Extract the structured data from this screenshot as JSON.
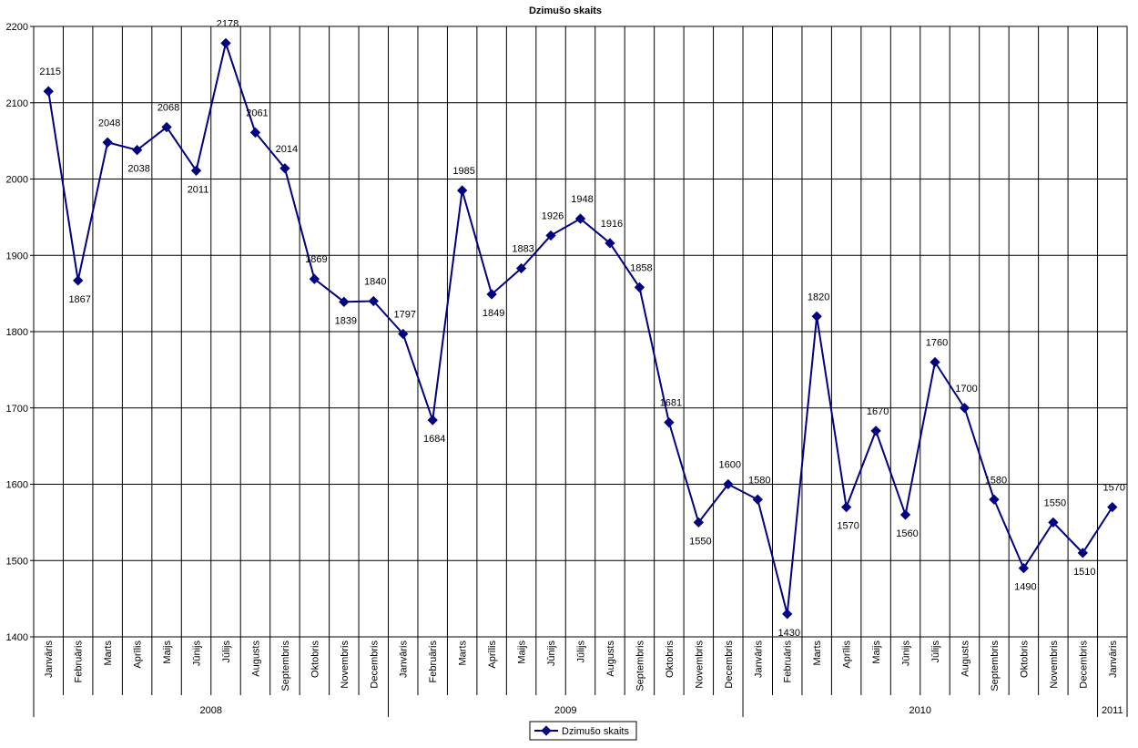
{
  "chart_data": {
    "type": "line",
    "title": "Dzimušo skaits",
    "xlabel": "",
    "ylabel": "",
    "ylim": [
      1400,
      2200
    ],
    "yticks": [
      1400,
      1500,
      1600,
      1700,
      1800,
      1900,
      2000,
      2100,
      2200
    ],
    "grid": true,
    "legend_position": "bottom-center",
    "colors": {
      "series": "#000080",
      "grid": "#000000",
      "background": "#ffffff"
    },
    "categories": [
      "Janvāris",
      "Februāris",
      "Marts",
      "Aprīlis",
      "Maijs",
      "Jūnijs",
      "Jūlijs",
      "Augusts",
      "Septembris",
      "Oktobris",
      "Novembris",
      "Decembris",
      "Janvāris",
      "Februāris",
      "Marts",
      "Aprīlis",
      "Maijs",
      "Jūnijs",
      "Jūlijs",
      "Augusts",
      "Septembris",
      "Oktobris",
      "Novembris",
      "Decembris",
      "Janvāris",
      "Februāris",
      "Marts",
      "Aprīlis",
      "Maijs",
      "Jūnijs",
      "Jūlijs",
      "Augusts",
      "Septembris",
      "Oktobris",
      "Novembris",
      "Decembris",
      "Janvāris"
    ],
    "groups": [
      {
        "label": "2008",
        "count": 12
      },
      {
        "label": "2009",
        "count": 12
      },
      {
        "label": "2010",
        "count": 12
      },
      {
        "label": "2011",
        "count": 1
      }
    ],
    "series": [
      {
        "name": "Dzimušo skaits",
        "values": [
          2115,
          1867,
          2048,
          2038,
          2068,
          2011,
          2178,
          2061,
          2014,
          1869,
          1839,
          1840,
          1797,
          1684,
          1985,
          1849,
          1883,
          1926,
          1948,
          1916,
          1858,
          1681,
          1550,
          1600,
          1580,
          1430,
          1820,
          1570,
          1670,
          1560,
          1760,
          1700,
          1580,
          1490,
          1550,
          1510,
          1570
        ]
      }
    ]
  }
}
